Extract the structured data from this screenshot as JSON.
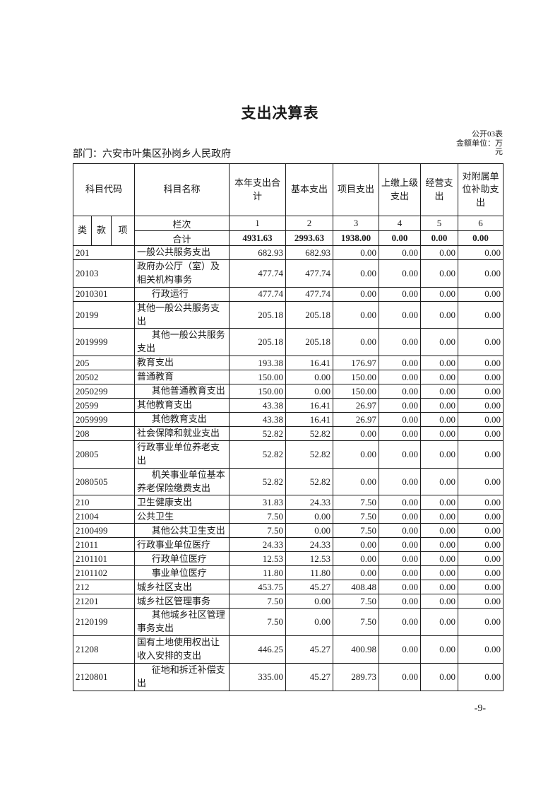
{
  "page": {
    "title": "支出决算表",
    "table_no": "公开03表",
    "unit_line1": "金额单位：万",
    "unit_line2": "元",
    "department": "部门：六安市叶集区孙岗乡人民政府",
    "page_number": "-9-"
  },
  "table": {
    "header": {
      "subject_code": "科目代码",
      "subject_name": "科目名称",
      "col_total": "本年支出合计",
      "col_basic": "基本支出",
      "col_project": "项目支出",
      "col_upper": "上缴上级支出",
      "col_operating": "经营支出",
      "col_subsidy": "对附属单位补助支出",
      "code_class": "类",
      "code_section": "款",
      "code_item": "项",
      "lanci_label": "栏次",
      "col_indexes": [
        "1",
        "2",
        "3",
        "4",
        "5",
        "6"
      ],
      "total_label": "合计"
    },
    "total_row": [
      "4931.63",
      "2993.63",
      "1938.00",
      "0.00",
      "0.00",
      "0.00"
    ],
    "rows": [
      {
        "code": "201",
        "name": "一般公共服务支出",
        "indent": false,
        "values": [
          "682.93",
          "682.93",
          "0.00",
          "0.00",
          "0.00",
          "0.00"
        ]
      },
      {
        "code": "20103",
        "name": "政府办公厅（室）及相关机构事务",
        "indent": false,
        "values": [
          "477.74",
          "477.74",
          "0.00",
          "0.00",
          "0.00",
          "0.00"
        ]
      },
      {
        "code": "2010301",
        "name": "行政运行",
        "indent": true,
        "values": [
          "477.74",
          "477.74",
          "0.00",
          "0.00",
          "0.00",
          "0.00"
        ]
      },
      {
        "code": "20199",
        "name": "其他一般公共服务支出",
        "indent": false,
        "values": [
          "205.18",
          "205.18",
          "0.00",
          "0.00",
          "0.00",
          "0.00"
        ]
      },
      {
        "code": "2019999",
        "name": "其他一般公共服务支出",
        "indent": true,
        "values": [
          "205.18",
          "205.18",
          "0.00",
          "0.00",
          "0.00",
          "0.00"
        ]
      },
      {
        "code": "205",
        "name": "教育支出",
        "indent": false,
        "values": [
          "193.38",
          "16.41",
          "176.97",
          "0.00",
          "0.00",
          "0.00"
        ]
      },
      {
        "code": "20502",
        "name": "普通教育",
        "indent": false,
        "values": [
          "150.00",
          "0.00",
          "150.00",
          "0.00",
          "0.00",
          "0.00"
        ]
      },
      {
        "code": "2050299",
        "name": "其他普通教育支出",
        "indent": true,
        "values": [
          "150.00",
          "0.00",
          "150.00",
          "0.00",
          "0.00",
          "0.00"
        ]
      },
      {
        "code": "20599",
        "name": "其他教育支出",
        "indent": false,
        "values": [
          "43.38",
          "16.41",
          "26.97",
          "0.00",
          "0.00",
          "0.00"
        ]
      },
      {
        "code": "2059999",
        "name": "其他教育支出",
        "indent": true,
        "values": [
          "43.38",
          "16.41",
          "26.97",
          "0.00",
          "0.00",
          "0.00"
        ]
      },
      {
        "code": "208",
        "name": "社会保障和就业支出",
        "indent": false,
        "values": [
          "52.82",
          "52.82",
          "0.00",
          "0.00",
          "0.00",
          "0.00"
        ]
      },
      {
        "code": "20805",
        "name": "行政事业单位养老支出",
        "indent": false,
        "values": [
          "52.82",
          "52.82",
          "0.00",
          "0.00",
          "0.00",
          "0.00"
        ]
      },
      {
        "code": "2080505",
        "name": "机关事业单位基本养老保险缴费支出",
        "indent": true,
        "values": [
          "52.82",
          "52.82",
          "0.00",
          "0.00",
          "0.00",
          "0.00"
        ]
      },
      {
        "code": "210",
        "name": "卫生健康支出",
        "indent": false,
        "values": [
          "31.83",
          "24.33",
          "7.50",
          "0.00",
          "0.00",
          "0.00"
        ]
      },
      {
        "code": "21004",
        "name": "公共卫生",
        "indent": false,
        "values": [
          "7.50",
          "0.00",
          "7.50",
          "0.00",
          "0.00",
          "0.00"
        ]
      },
      {
        "code": "2100499",
        "name": "其他公共卫生支出",
        "indent": true,
        "values": [
          "7.50",
          "0.00",
          "7.50",
          "0.00",
          "0.00",
          "0.00"
        ]
      },
      {
        "code": "21011",
        "name": "行政事业单位医疗",
        "indent": false,
        "values": [
          "24.33",
          "24.33",
          "0.00",
          "0.00",
          "0.00",
          "0.00"
        ]
      },
      {
        "code": "2101101",
        "name": "行政单位医疗",
        "indent": true,
        "values": [
          "12.53",
          "12.53",
          "0.00",
          "0.00",
          "0.00",
          "0.00"
        ]
      },
      {
        "code": "2101102",
        "name": "事业单位医疗",
        "indent": true,
        "values": [
          "11.80",
          "11.80",
          "0.00",
          "0.00",
          "0.00",
          "0.00"
        ]
      },
      {
        "code": "212",
        "name": "城乡社区支出",
        "indent": false,
        "values": [
          "453.75",
          "45.27",
          "408.48",
          "0.00",
          "0.00",
          "0.00"
        ]
      },
      {
        "code": "21201",
        "name": "城乡社区管理事务",
        "indent": false,
        "values": [
          "7.50",
          "0.00",
          "7.50",
          "0.00",
          "0.00",
          "0.00"
        ]
      },
      {
        "code": "2120199",
        "name": "其他城乡社区管理事务支出",
        "indent": true,
        "values": [
          "7.50",
          "0.00",
          "7.50",
          "0.00",
          "0.00",
          "0.00"
        ]
      },
      {
        "code": "21208",
        "name": "国有土地使用权出让收入安排的支出",
        "indent": false,
        "values": [
          "446.25",
          "45.27",
          "400.98",
          "0.00",
          "0.00",
          "0.00"
        ]
      },
      {
        "code": "2120801",
        "name": "征地和拆迁补偿支出",
        "indent": true,
        "values": [
          "335.00",
          "45.27",
          "289.73",
          "0.00",
          "0.00",
          "0.00"
        ]
      }
    ]
  }
}
